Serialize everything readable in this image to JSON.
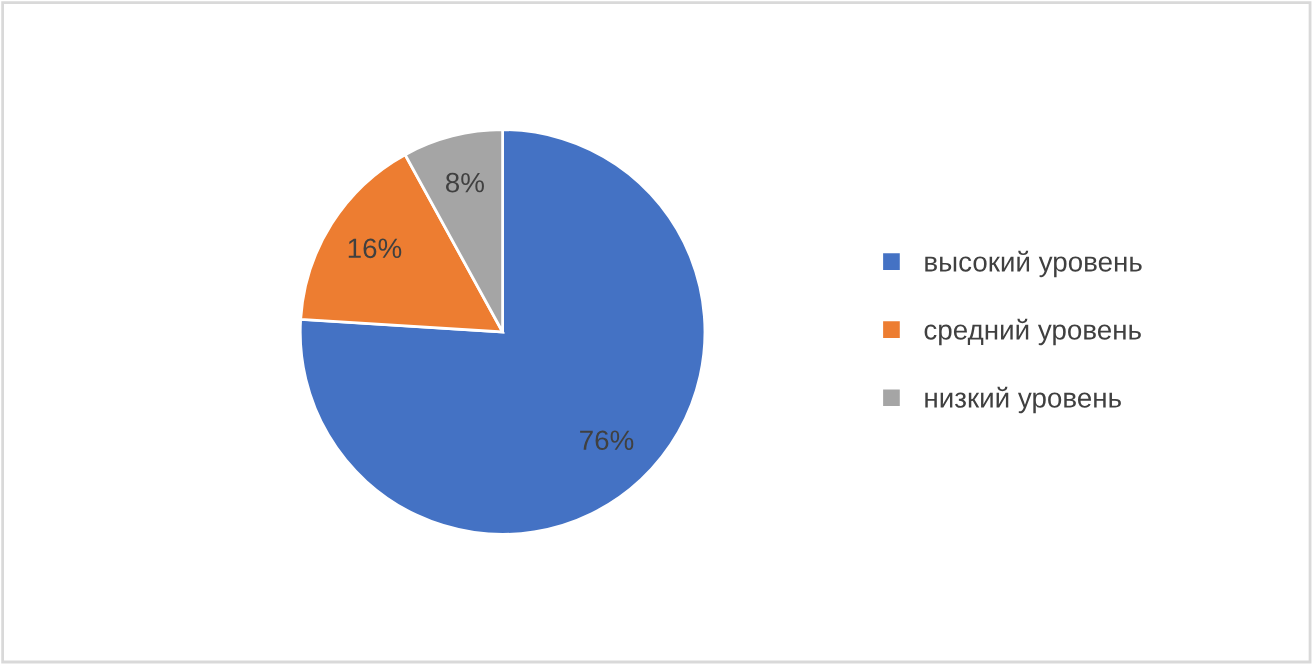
{
  "chart_data": {
    "type": "pie",
    "categories": [
      "высокий уровень",
      "средний уровень",
      "низкий уровень"
    ],
    "values": [
      76,
      16,
      8
    ],
    "colors": [
      "#4472c4",
      "#ed7d31",
      "#a5a5a5"
    ],
    "value_labels": [
      "76%",
      "16%",
      "8%"
    ],
    "legend": "right"
  }
}
